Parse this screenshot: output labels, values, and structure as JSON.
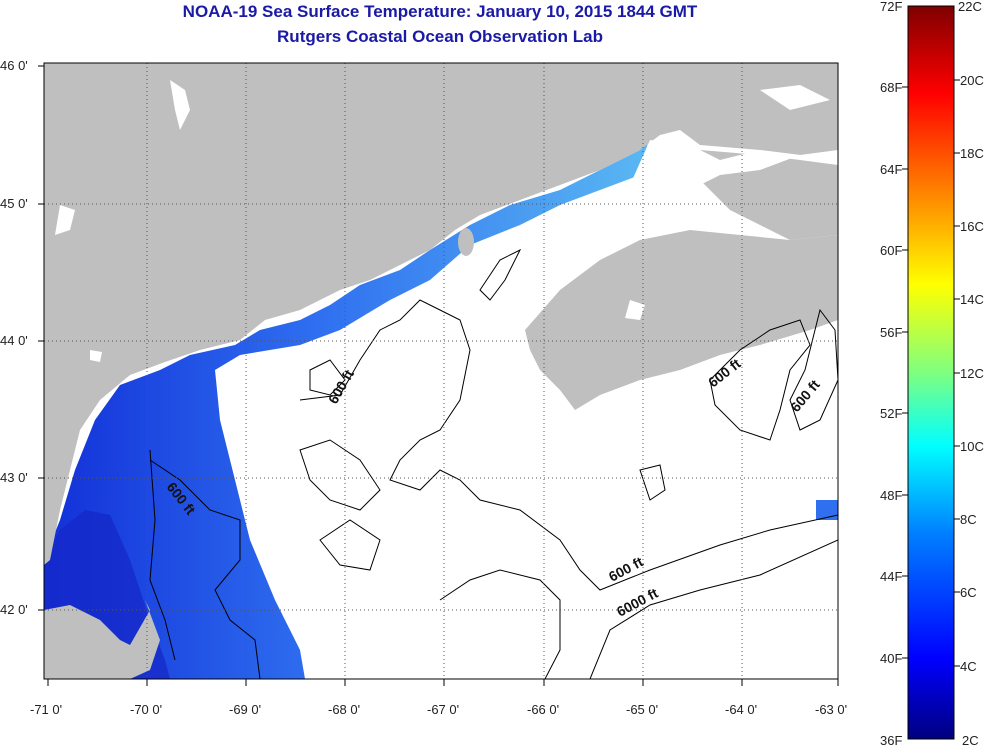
{
  "title": "NOAA-19 Sea Surface Temperature:  January 10, 2015 1844 GMT",
  "subtitle": "Rutgers Coastal Ocean Observation Lab",
  "lon_labels": [
    "-71 0'",
    "-70 0'",
    "-69 0'",
    "-68 0'",
    "-67 0'",
    "-66 0'",
    "-65 0'",
    "-64 0'",
    "-63 0'"
  ],
  "lat_labels": [
    "46 0'",
    "45 0'",
    "44 0'",
    "43 0'",
    "42 0'"
  ],
  "contour_labels": [
    "600 ft",
    "600 ft",
    "600 ft",
    "600 ft",
    "600 ft",
    "6000 ft"
  ],
  "colorbar": {
    "fahrenheit_labels": [
      "72F",
      "68F",
      "64F",
      "60F",
      "56F",
      "52F",
      "48F",
      "44F",
      "40F",
      "36F"
    ],
    "celsius_labels": [
      "22C",
      "20C",
      "18C",
      "16C",
      "14C",
      "12C",
      "10C",
      "8C",
      "6C",
      "4C",
      "2C"
    ],
    "colors": [
      "#00007f",
      "#0000ff",
      "#007fff",
      "#00ffff",
      "#7fff7f",
      "#ffff00",
      "#ff7f00",
      "#ff0000",
      "#7f0000"
    ]
  },
  "colors": {
    "land": "#bfbfbf",
    "ocean": "#ffffff",
    "title": "#1a1aa6",
    "sst_cold": "#1f3fe0",
    "sst_warm": "#2a9df0"
  }
}
